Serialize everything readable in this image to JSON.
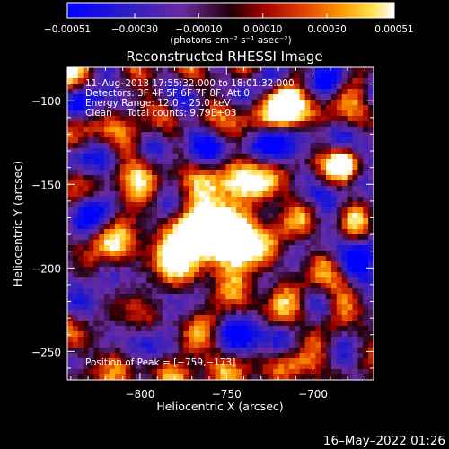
{
  "chart_data": {
    "type": "heatmap",
    "title": "Reconstructed RHESSI Image",
    "xlabel": "Heliocentric X (arcsec)",
    "ylabel": "Heliocentric Y (arcsec)",
    "xlim": [
      -842,
      -665
    ],
    "ylim": [
      -267,
      -80
    ],
    "x_ticks": [
      -800,
      -750,
      -700
    ],
    "x_tick_labels": [
      "−800",
      "−750",
      "−700"
    ],
    "y_ticks": [
      -100,
      -150,
      -200,
      -250
    ],
    "y_tick_labels": [
      "−100",
      "−150",
      "−200",
      "−250"
    ],
    "colorbar": {
      "range": [
        -0.00051,
        0.00051
      ],
      "ticks": [
        -0.00051,
        -0.0003,
        -0.0001,
        0.0001,
        0.0003,
        0.00051
      ],
      "tick_labels": [
        "−0.00051",
        "−0.00030",
        "−0.00010",
        "0.00010",
        "0.00030",
        "0.00051"
      ],
      "label": "(photons cm⁻² s⁻¹ asec⁻²)"
    },
    "annotations": [
      "11–Aug–2013 17:55:32.000 to 18:01:32.000",
      "Detectors: 3F 4F 5F 6F 7F 8F, Att 0",
      "Energy Range: 12.0 – 25.0 keV",
      "Clean     Total counts: 9.79E+03"
    ],
    "peak_label": "Position of Peak = [−759,−173]",
    "peak": [
      -759,
      -173
    ]
  },
  "timestamp": "16–May–2022 01:26",
  "colors": {
    "background": "#000000",
    "colormap": [
      "#0000ff",
      "#3a1a8a",
      "#6a2aa0",
      "#3a0010",
      "#a00000",
      "#e04000",
      "#ff9000",
      "#ffe040",
      "#ffffff"
    ]
  }
}
